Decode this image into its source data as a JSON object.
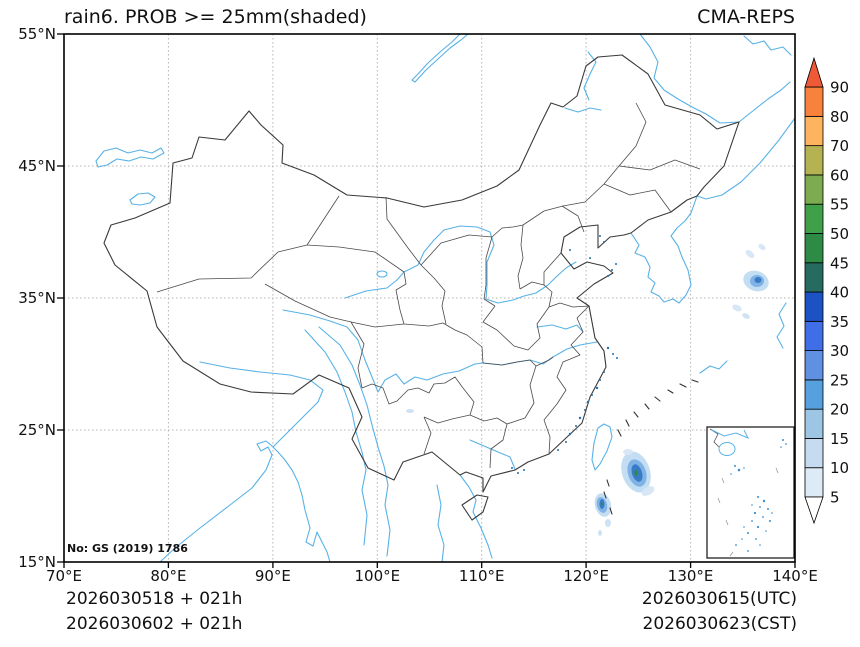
{
  "header": {
    "title": "rain6. PROB >= 25mm(shaded)",
    "brand": "CMA-REPS"
  },
  "license_note": "No: GS (2019) 1786",
  "footer": {
    "init_line1": "2026030518 + 021h",
    "init_line2": "2026030602 + 021h",
    "valid_utc": "2026030615(UTC)",
    "valid_cst": "2026030623(CST)"
  },
  "axes": {
    "x_ticks": [
      "70°E",
      "80°E",
      "90°E",
      "100°E",
      "110°E",
      "120°E",
      "130°E",
      "140°E"
    ],
    "y_ticks": [
      "55°N",
      "45°N",
      "35°N",
      "25°N",
      "15°N"
    ]
  },
  "colorbar": {
    "labels": [
      "5",
      "10",
      "15",
      "20",
      "25",
      "30",
      "35",
      "40",
      "45",
      "50",
      "55",
      "60",
      "70",
      "80",
      "90"
    ],
    "segment_colors": [
      "#dcebf6",
      "#c6dbf0",
      "#9cc6e4",
      "#55a0dd",
      "#5f90e2",
      "#3f6ee6",
      "#1d52c4",
      "#276a60",
      "#2e8b45",
      "#3fa049",
      "#7dab50",
      "#b5b252",
      "#fdb45e",
      "#f8823c"
    ],
    "over_color": "#ee5a38",
    "under_color": "#ffffff"
  },
  "chart_data": {
    "type": "heatmap",
    "title": "rain6. PROB >= 25mm(shaded)",
    "source_model": "CMA-REPS",
    "variable": "probability of 6-h rainfall >= 25 mm",
    "units": "%",
    "xlabel": "longitude (°E)",
    "ylabel": "latitude (°N)",
    "lon_range": [
      70,
      140
    ],
    "lat_range": [
      15,
      55
    ],
    "grid": "dotted every 10 degrees",
    "legend_position": "right vertical colorbar with over/under arrows",
    "levels": [
      5,
      10,
      15,
      20,
      25,
      30,
      35,
      40,
      45,
      50,
      55,
      60,
      70,
      80,
      90
    ],
    "shaded_features": [
      {
        "area": "ocean east-southeast of Taiwan",
        "center_lon": 124.9,
        "center_lat": 21.7,
        "peak_band": "45-50%"
      },
      {
        "area": "Luzon Strait near Batanes",
        "center_lon": 121.6,
        "center_lat": 19.3,
        "peak_band": "45-50%"
      },
      {
        "area": "central Sea of Japan",
        "center_lon": 136.4,
        "center_lat": 36.3,
        "peak_band": "30-35%"
      },
      {
        "area": "scattered specks, South China Sea inset",
        "peak_band": "5-15%"
      }
    ],
    "base_map": "China national and province boundaries, coastlines, rivers, lakes, South China Sea inset box"
  }
}
